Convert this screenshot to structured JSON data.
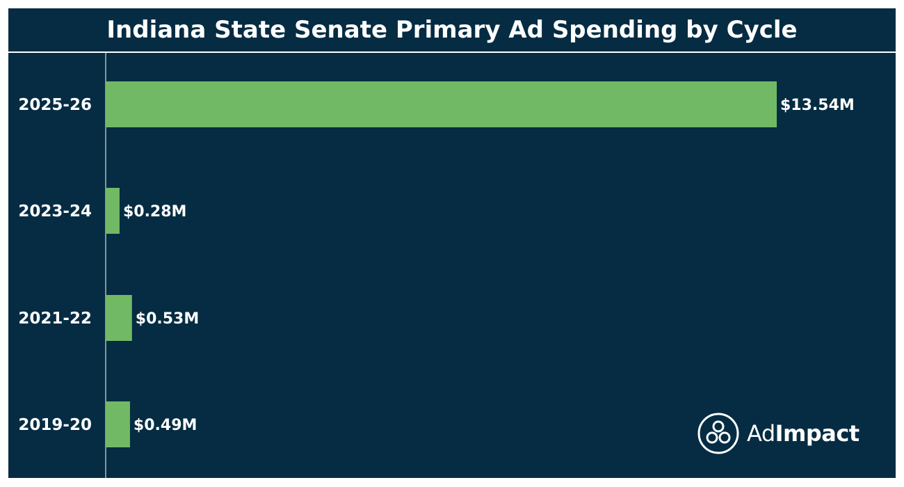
{
  "chart_data": {
    "type": "bar",
    "orientation": "horizontal",
    "title": "Indiana State Senate Primary Ad Spending by Cycle",
    "categories": [
      "2025-26",
      "2023-24",
      "2021-22",
      "2019-20"
    ],
    "values": [
      13.54,
      0.28,
      0.53,
      0.49
    ],
    "data_labels": [
      "$13.54M",
      "$0.28M",
      "$0.53M",
      "$0.49M"
    ],
    "unit": "$M",
    "xlim": [
      0,
      15
    ],
    "grid": false,
    "legend": "none"
  },
  "colors": {
    "background": "#052c42",
    "bar": "#72b965",
    "text": "#ffffff"
  },
  "logo": {
    "text_light": "Ad",
    "text_bold": "Impact",
    "icon": "adimpact-logo-icon"
  }
}
